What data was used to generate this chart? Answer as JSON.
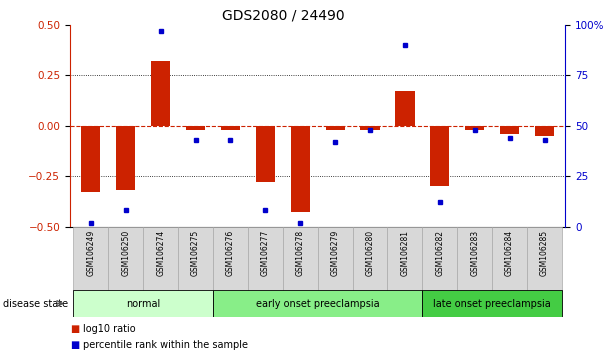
{
  "title": "GDS2080 / 24490",
  "samples": [
    "GSM106249",
    "GSM106250",
    "GSM106274",
    "GSM106275",
    "GSM106276",
    "GSM106277",
    "GSM106278",
    "GSM106279",
    "GSM106280",
    "GSM106281",
    "GSM106282",
    "GSM106283",
    "GSM106284",
    "GSM106285"
  ],
  "log10_ratio": [
    -0.33,
    -0.32,
    0.32,
    -0.02,
    -0.02,
    -0.28,
    -0.43,
    -0.02,
    -0.02,
    0.17,
    -0.3,
    -0.02,
    -0.04,
    -0.05
  ],
  "percentile_rank": [
    2,
    8,
    97,
    43,
    43,
    8,
    2,
    42,
    48,
    90,
    12,
    48,
    44,
    43
  ],
  "ylim_left": [
    -0.5,
    0.5
  ],
  "ylim_right": [
    0,
    100
  ],
  "yticks_left": [
    -0.5,
    -0.25,
    0,
    0.25,
    0.5
  ],
  "yticks_right": [
    0,
    25,
    50,
    75,
    100
  ],
  "bar_color": "#cc2200",
  "dot_color": "#0000cc",
  "zero_line_color": "#cc2200",
  "grid_color": "#000000",
  "groups": [
    {
      "label": "normal",
      "start": 0,
      "end": 3,
      "color": "#ccffcc"
    },
    {
      "label": "early onset preeclampsia",
      "start": 4,
      "end": 9,
      "color": "#88ee88"
    },
    {
      "label": "late onset preeclampsia",
      "start": 10,
      "end": 13,
      "color": "#44cc44"
    }
  ],
  "legend_items": [
    {
      "label": "log10 ratio",
      "color": "#cc2200"
    },
    {
      "label": "percentile rank within the sample",
      "color": "#0000cc"
    }
  ],
  "disease_state_label": "disease state",
  "background_color": "#ffffff",
  "right_axis_color": "#0000cc",
  "left_axis_color": "#cc2200",
  "title_fontsize": 10,
  "axis_fontsize": 7.5,
  "sample_fontsize": 5.5,
  "group_fontsize": 7,
  "legend_fontsize": 7,
  "ds_fontsize": 7
}
